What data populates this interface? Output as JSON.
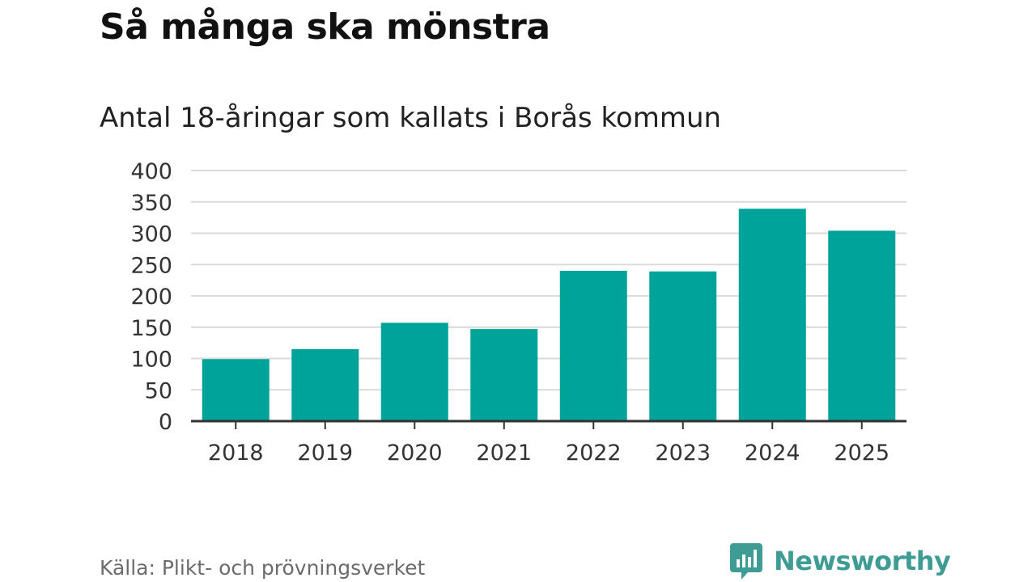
{
  "header": {
    "title": "Så många ska mönstra",
    "subtitle": "Antal 18-åringar som kallats i Borås kommun"
  },
  "footer": {
    "source": "Källa: Plikt- och prövningsverket",
    "brand": "Newsworthy",
    "brand_icon": "newsworthy-logo-icon"
  },
  "colors": {
    "bar": "#00a39a",
    "grid": "#d9d9d9",
    "axis": "#333333",
    "brand": "#3f9c94"
  },
  "chart_data": {
    "type": "bar",
    "title": "Så många ska mönstra",
    "subtitle": "Antal 18-åringar som kallats i Borås kommun",
    "xlabel": "",
    "ylabel": "",
    "categories": [
      "2018",
      "2019",
      "2020",
      "2021",
      "2022",
      "2023",
      "2024",
      "2025"
    ],
    "values": [
      99,
      115,
      157,
      147,
      240,
      239,
      339,
      304
    ],
    "ylim": [
      0,
      400
    ],
    "yticks": [
      "0",
      "50",
      "100",
      "150",
      "200",
      "250",
      "300",
      "350",
      "400"
    ],
    "grid": true,
    "legend": "none"
  }
}
